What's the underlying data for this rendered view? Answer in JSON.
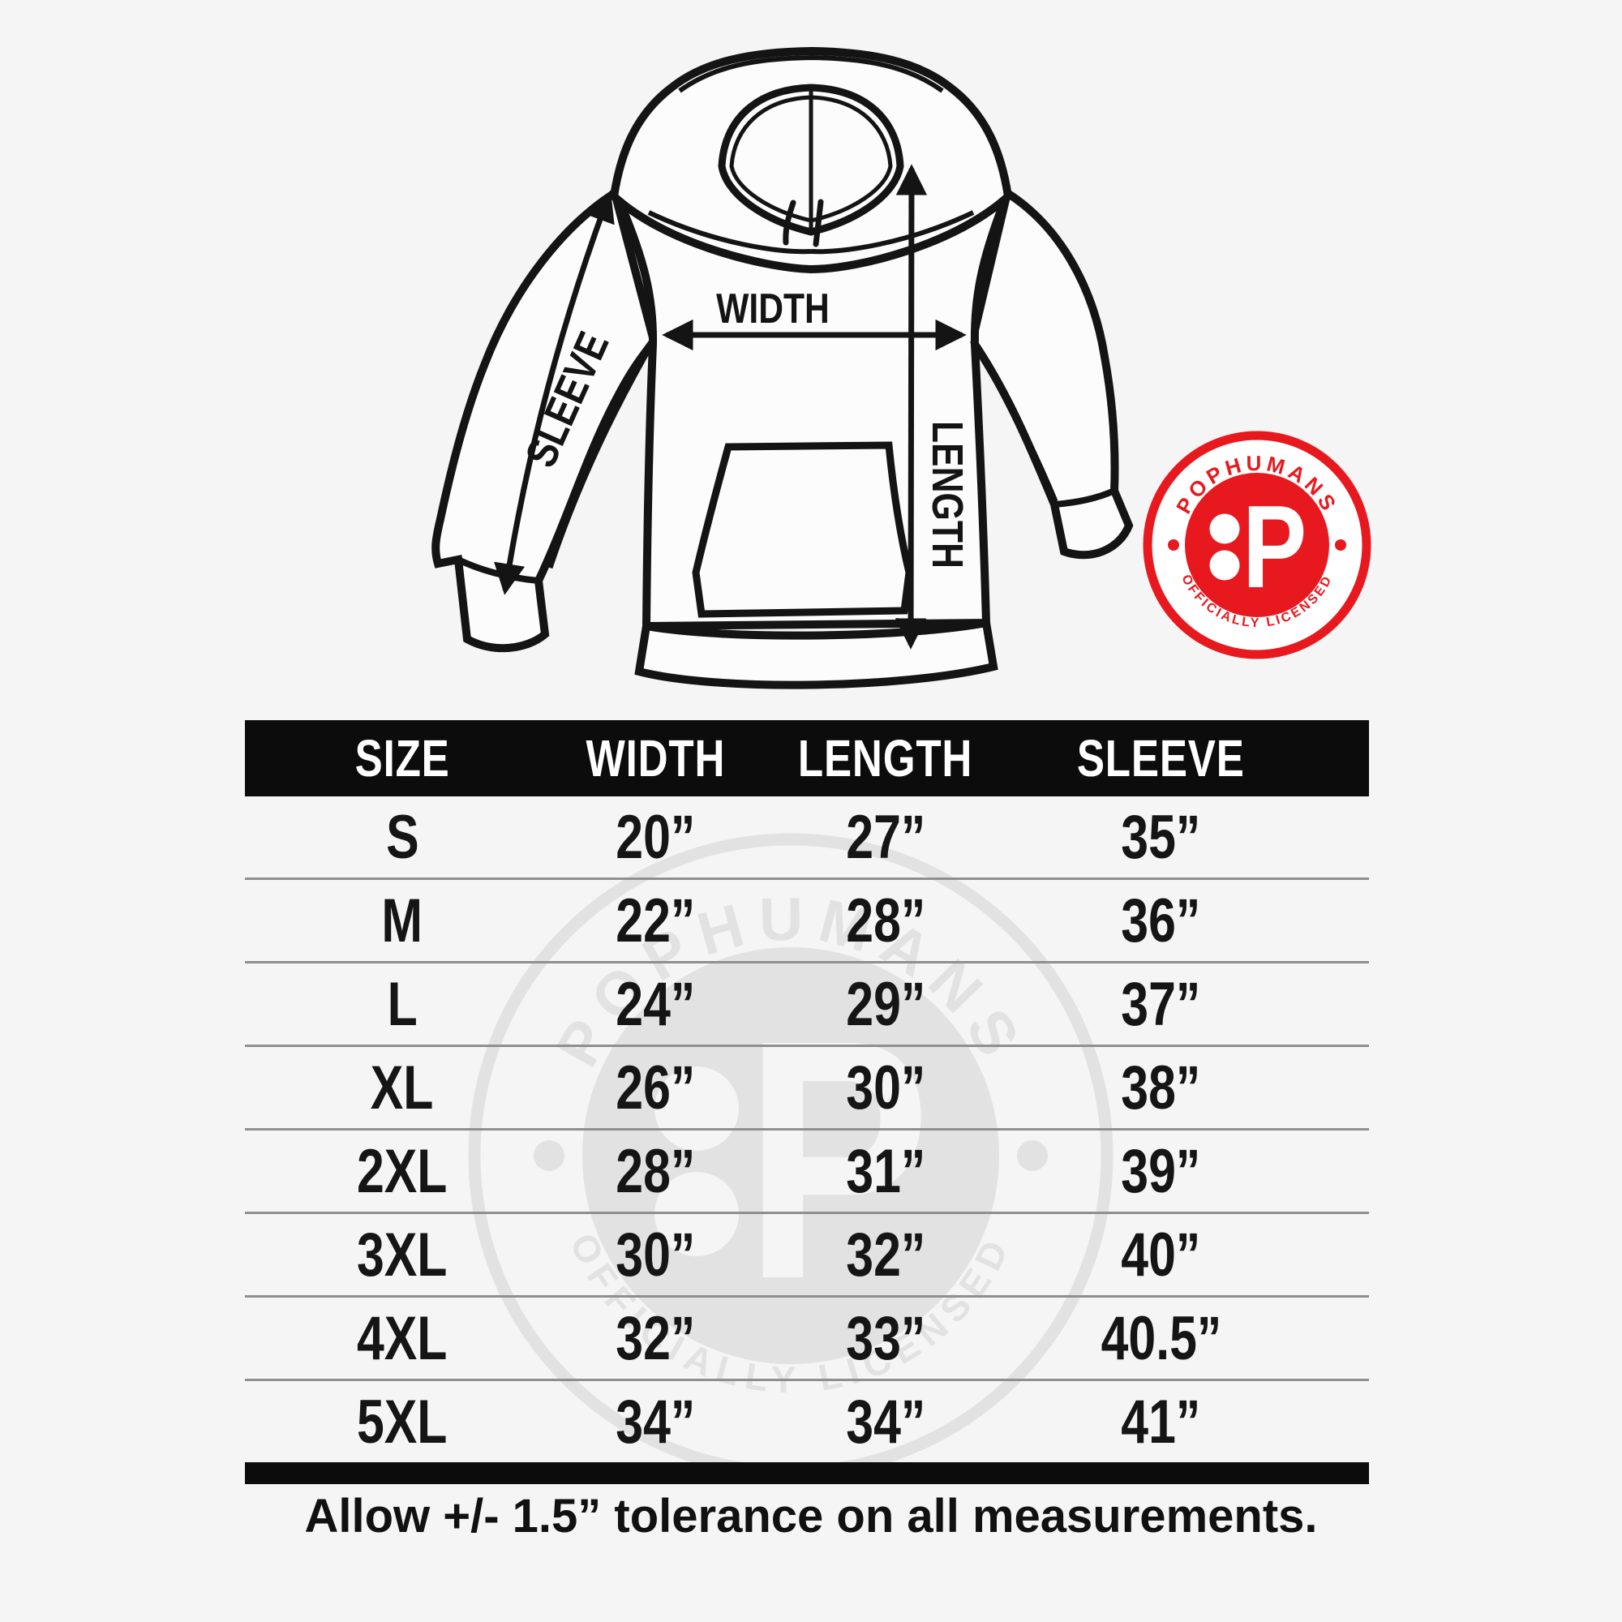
{
  "colors": {
    "badge_red": "#e8191e",
    "watermark_gray": "#e2e2e2",
    "ink": "#141414",
    "background": "#f5f5f6"
  },
  "diagram": {
    "width_label": "WIDTH",
    "length_label": "LENGTH",
    "sleeve_label": "SLEEVE"
  },
  "badge": {
    "top_text": "POPHUMANS",
    "bottom_text": "OFFICIALLY LICENSED",
    "monogram": "P"
  },
  "watermark": {
    "top_text": "POPHUMANS",
    "bottom_text": "OFFICIALLY LICENSED",
    "monogram": "P"
  },
  "size_table": {
    "headers": [
      "SIZE",
      "WIDTH",
      "LENGTH",
      "SLEEVE"
    ],
    "rows": [
      {
        "size": "S",
        "width": "20”",
        "length": "27”",
        "sleeve": "35”"
      },
      {
        "size": "M",
        "width": "22”",
        "length": "28”",
        "sleeve": "36”"
      },
      {
        "size": "L",
        "width": "24”",
        "length": "29”",
        "sleeve": "37”"
      },
      {
        "size": "XL",
        "width": "26”",
        "length": "30”",
        "sleeve": "38”"
      },
      {
        "size": "2XL",
        "width": "28”",
        "length": "31”",
        "sleeve": "39”"
      },
      {
        "size": "3XL",
        "width": "30”",
        "length": "32”",
        "sleeve": "40”"
      },
      {
        "size": "4XL",
        "width": "32”",
        "length": "33”",
        "sleeve": "40.5”"
      },
      {
        "size": "5XL",
        "width": "34”",
        "length": "34”",
        "sleeve": "41”"
      }
    ]
  },
  "footer": {
    "note": "Allow +/- 1.5” tolerance on all measurements."
  }
}
